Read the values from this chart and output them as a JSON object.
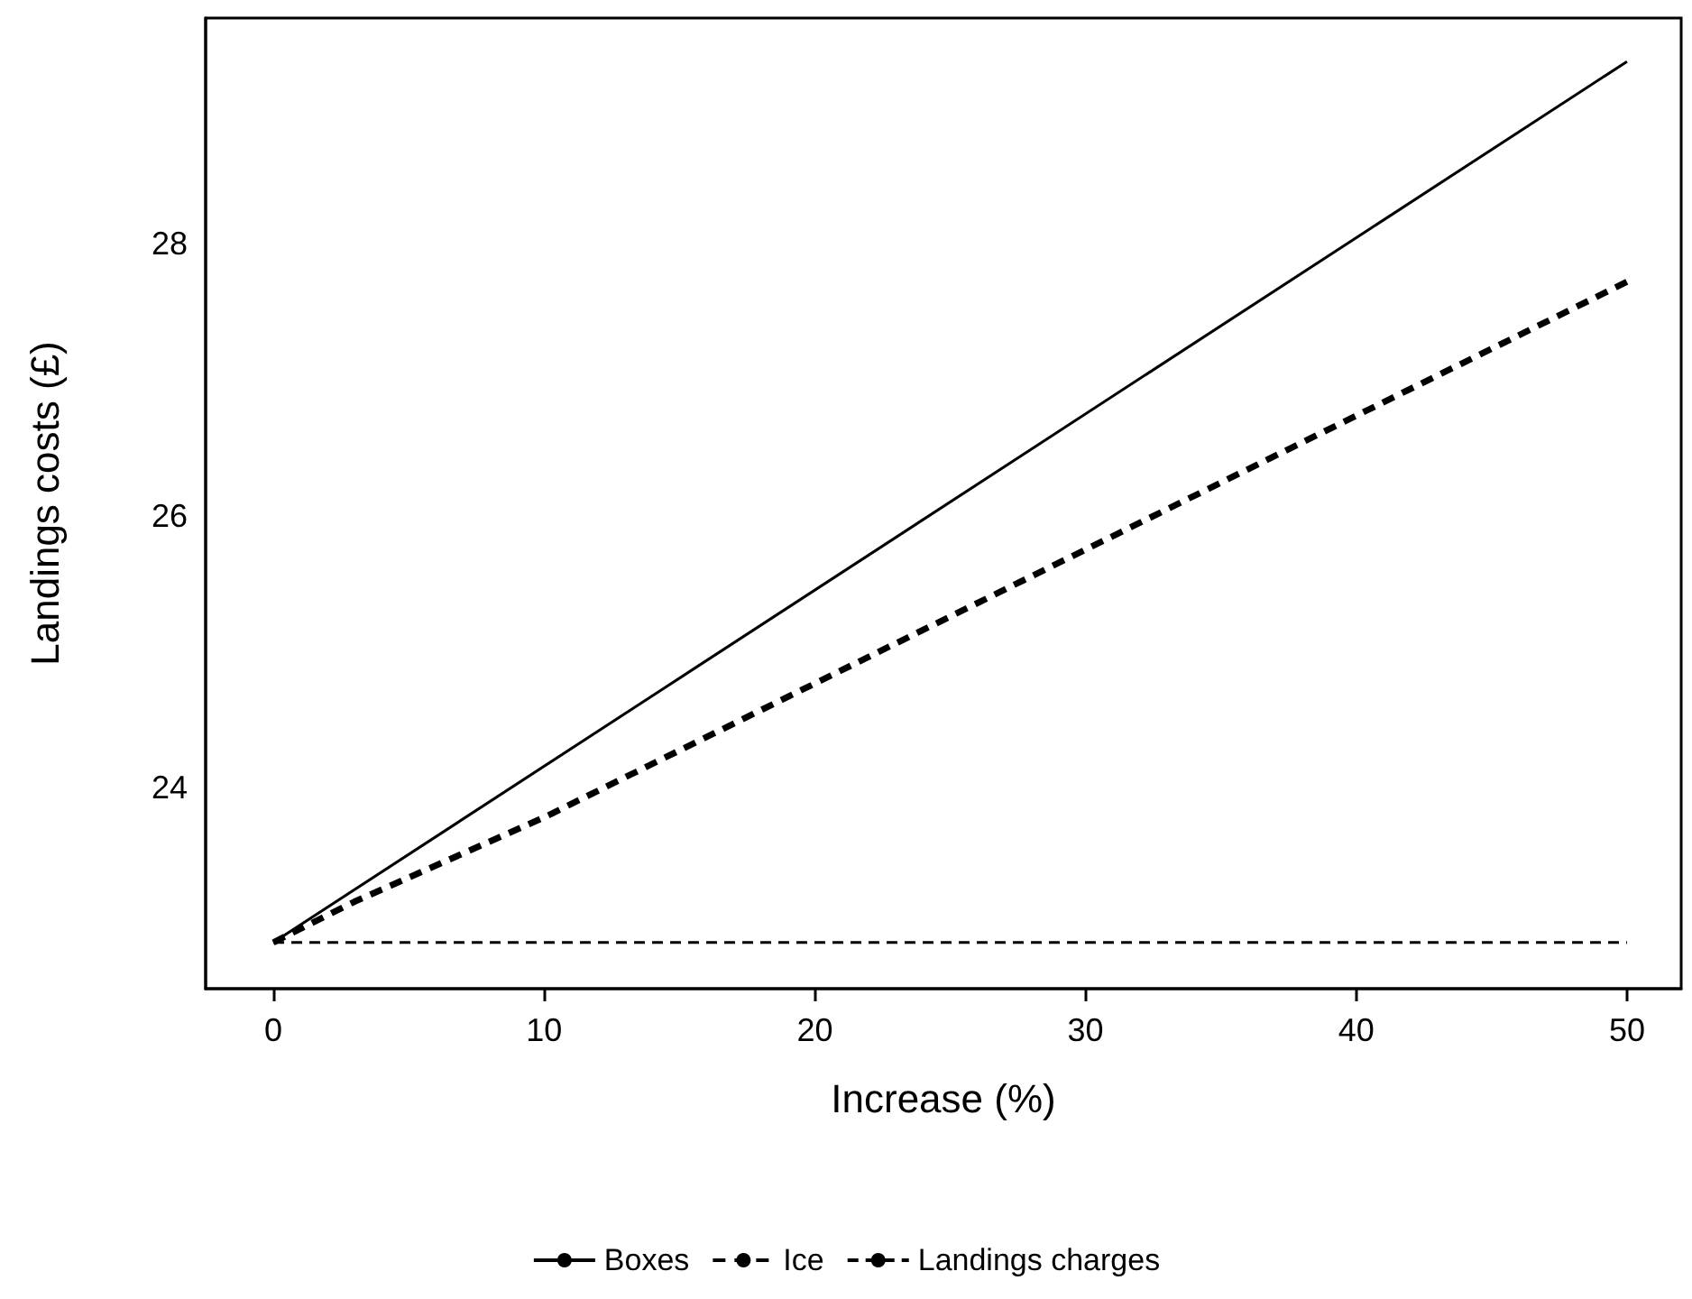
{
  "chart_data": {
    "type": "line",
    "xlabel": "Increase (%)",
    "ylabel": "Landings costs (£)",
    "xlim": [
      -2.5,
      52
    ],
    "xticks": [
      0,
      10,
      20,
      30,
      40,
      50
    ],
    "ylim": [
      22.52,
      29.66
    ],
    "yticks": [
      24,
      26,
      28
    ],
    "series": [
      {
        "name": "Boxes",
        "color": "#000000",
        "line_style": "solid",
        "x": [
          0,
          50
        ],
        "values": [
          22.86,
          29.34
        ]
      },
      {
        "name": "Ice",
        "color": "#000000",
        "line_style": "dashed",
        "x": [
          0,
          3,
          10,
          50
        ],
        "values": [
          22.86,
          23.16,
          23.78,
          27.72
        ]
      },
      {
        "name": "Landings charges",
        "color": "#000000",
        "line_style": "dashed",
        "x": [
          0,
          50
        ],
        "values": [
          22.86,
          22.86
        ]
      }
    ],
    "grid": false,
    "legend": "bottom",
    "marker": "none"
  }
}
